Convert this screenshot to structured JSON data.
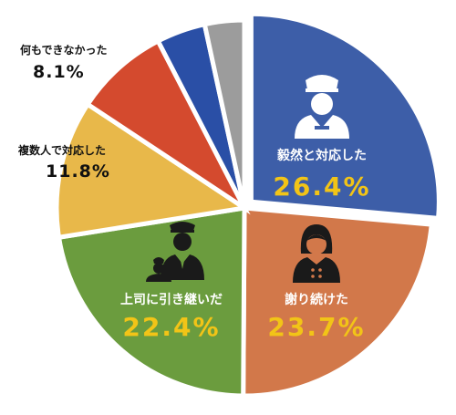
{
  "chart_data": {
    "type": "pie",
    "title": "",
    "slices": [
      {
        "name": "毅然と対応した",
        "value": 26.4,
        "label": "26.4%",
        "color": "#3d5ea8",
        "icon": "security-guard-icon"
      },
      {
        "name": "謝り続けた",
        "value": 23.7,
        "label": "23.7%",
        "color": "#d2784a",
        "icon": "woman-staff-icon"
      },
      {
        "name": "上司に引き継いだ",
        "value": 22.4,
        "label": "22.4%",
        "color": "#6b9c3e",
        "icon": "supervisor-and-staff-icon"
      },
      {
        "name": "複数人で対応した",
        "value": 11.8,
        "label": "11.8%",
        "color": "#e8b84a",
        "icon": ""
      },
      {
        "name": "何もできなかった",
        "value": 8.1,
        "label": "8.1%",
        "color": "#d44a2e",
        "icon": ""
      },
      {
        "name": "",
        "value": 4.2,
        "label": "",
        "color": "#2a4fa6",
        "icon": ""
      },
      {
        "name": "",
        "value": 3.4,
        "label": "",
        "color": "#9c9c9c",
        "icon": ""
      }
    ],
    "colors": {
      "inside_name": "#ffffff",
      "inside_value": "#f2c417",
      "outside_text": "#111111"
    }
  }
}
